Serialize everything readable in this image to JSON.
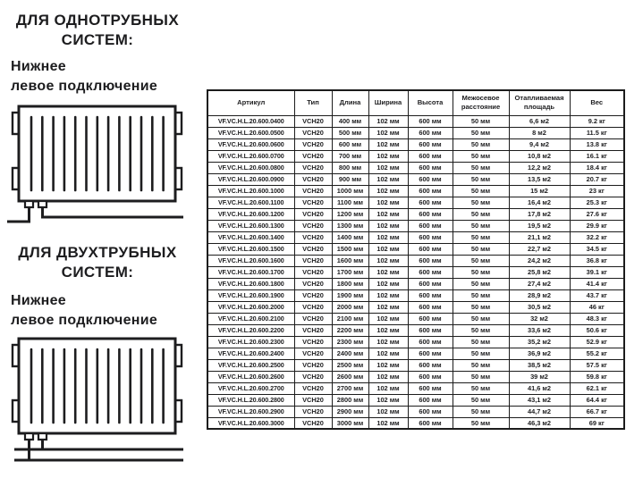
{
  "left_panel": {
    "sections": [
      {
        "title_line1": "ДЛЯ ОДНОТРУБНЫХ",
        "title_line2": "СИСТЕМ:",
        "subtitle_line1": "Нижнее",
        "subtitle_line2": "левое подключение",
        "diagram": "single-pipe-bottom-left-connection"
      },
      {
        "title_line1": "ДЛЯ ДВУХТРУБНЫХ",
        "title_line2": "СИСТЕМ:",
        "subtitle_line1": "Нижнее",
        "subtitle_line2": "левое подключение",
        "diagram": "two-pipe-bottom-left-connection"
      }
    ]
  },
  "table": {
    "headers": [
      "Артикул",
      "Тип",
      "Длина",
      "Ширина",
      "Высота",
      "Межосевое расстояние",
      "Отапливаемая площадь",
      "Вес"
    ],
    "rows": [
      [
        "VF.VC.H.L.20.600.0400",
        "VCH20",
        "400 мм",
        "102 мм",
        "600 мм",
        "50 мм",
        "6,6 м2",
        "9.2 кг"
      ],
      [
        "VF.VC.H.L.20.600.0500",
        "VCH20",
        "500 мм",
        "102 мм",
        "600 мм",
        "50 мм",
        "8 м2",
        "11.5 кг"
      ],
      [
        "VF.VC.H.L.20.600.0600",
        "VCH20",
        "600 мм",
        "102 мм",
        "600 мм",
        "50 мм",
        "9,4 м2",
        "13.8 кг"
      ],
      [
        "VF.VC.H.L.20.600.0700",
        "VCH20",
        "700 мм",
        "102 мм",
        "600 мм",
        "50 мм",
        "10,8 м2",
        "16.1 кг"
      ],
      [
        "VF.VC.H.L.20.600.0800",
        "VCH20",
        "800 мм",
        "102 мм",
        "600 мм",
        "50 мм",
        "12,2 м2",
        "18.4 кг"
      ],
      [
        "VF.VC.H.L.20.600.0900",
        "VCH20",
        "900 мм",
        "102 мм",
        "600 мм",
        "50 мм",
        "13,5 м2",
        "20.7 кг"
      ],
      [
        "VF.VC.H.L.20.600.1000",
        "VCH20",
        "1000 мм",
        "102 мм",
        "600 мм",
        "50 мм",
        "15 м2",
        "23 кг"
      ],
      [
        "VF.VC.H.L.20.600.1100",
        "VCH20",
        "1100 мм",
        "102 мм",
        "600 мм",
        "50 мм",
        "16,4 м2",
        "25.3 кг"
      ],
      [
        "VF.VC.H.L.20.600.1200",
        "VCH20",
        "1200 мм",
        "102 мм",
        "600 мм",
        "50 мм",
        "17,8 м2",
        "27.6 кг"
      ],
      [
        "VF.VC.H.L.20.600.1300",
        "VCH20",
        "1300 мм",
        "102 мм",
        "600 мм",
        "50 мм",
        "19,5 м2",
        "29.9 кг"
      ],
      [
        "VF.VC.H.L.20.600.1400",
        "VCH20",
        "1400 мм",
        "102 мм",
        "600 мм",
        "50 мм",
        "21,1 м2",
        "32.2 кг"
      ],
      [
        "VF.VC.H.L.20.600.1500",
        "VCH20",
        "1500 мм",
        "102 мм",
        "600 мм",
        "50 мм",
        "22,7 м2",
        "34.5 кг"
      ],
      [
        "VF.VC.H.L.20.600.1600",
        "VCH20",
        "1600 мм",
        "102 мм",
        "600 мм",
        "50 мм",
        "24,2 м2",
        "36.8 кг"
      ],
      [
        "VF.VC.H.L.20.600.1700",
        "VCH20",
        "1700 мм",
        "102 мм",
        "600 мм",
        "50 мм",
        "25,8 м2",
        "39.1 кг"
      ],
      [
        "VF.VC.H.L.20.600.1800",
        "VCH20",
        "1800 мм",
        "102 мм",
        "600 мм",
        "50 мм",
        "27,4 м2",
        "41.4 кг"
      ],
      [
        "VF.VC.H.L.20.600.1900",
        "VCH20",
        "1900 мм",
        "102 мм",
        "600 мм",
        "50 мм",
        "28,9 м2",
        "43.7 кг"
      ],
      [
        "VF.VC.H.L.20.600.2000",
        "VCH20",
        "2000 мм",
        "102 мм",
        "600 мм",
        "50 мм",
        "30,5 м2",
        "46 кг"
      ],
      [
        "VF.VC.H.L.20.600.2100",
        "VCH20",
        "2100 мм",
        "102 мм",
        "600 мм",
        "50 мм",
        "32 м2",
        "48.3 кг"
      ],
      [
        "VF.VC.H.L.20.600.2200",
        "VCH20",
        "2200 мм",
        "102 мм",
        "600 мм",
        "50 мм",
        "33,6 м2",
        "50.6 кг"
      ],
      [
        "VF.VC.H.L.20.600.2300",
        "VCH20",
        "2300 мм",
        "102 мм",
        "600 мм",
        "50 мм",
        "35,2 м2",
        "52.9 кг"
      ],
      [
        "VF.VC.H.L.20.600.2400",
        "VCH20",
        "2400 мм",
        "102 мм",
        "600 мм",
        "50 мм",
        "36,9 м2",
        "55.2 кг"
      ],
      [
        "VF.VC.H.L.20.600.2500",
        "VCH20",
        "2500 мм",
        "102 мм",
        "600 мм",
        "50 мм",
        "38,5 м2",
        "57.5 кг"
      ],
      [
        "VF.VC.H.L.20.600.2600",
        "VCH20",
        "2600 мм",
        "102 мм",
        "600 мм",
        "50 мм",
        "39 м2",
        "59.8 кг"
      ],
      [
        "VF.VC.H.L.20.600.2700",
        "VCH20",
        "2700 мм",
        "102 мм",
        "600 мм",
        "50 мм",
        "41,6 м2",
        "62.1 кг"
      ],
      [
        "VF.VC.H.L.20.600.2800",
        "VCH20",
        "2800 мм",
        "102 мм",
        "600 мм",
        "50 мм",
        "43,1 м2",
        "64.4 кг"
      ],
      [
        "VF.VC.H.L.20.600.2900",
        "VCH20",
        "2900 мм",
        "102 мм",
        "600 мм",
        "50 мм",
        "44,7 м2",
        "66.7 кг"
      ],
      [
        "VF.VC.H.L.20.600.3000",
        "VCH20",
        "3000 мм",
        "102 мм",
        "600 мм",
        "50 мм",
        "46,3 м2",
        "69 кг"
      ]
    ]
  },
  "colors": {
    "text": "#1d1d1f",
    "border": "#1c1c1c",
    "background": "#ffffff"
  }
}
